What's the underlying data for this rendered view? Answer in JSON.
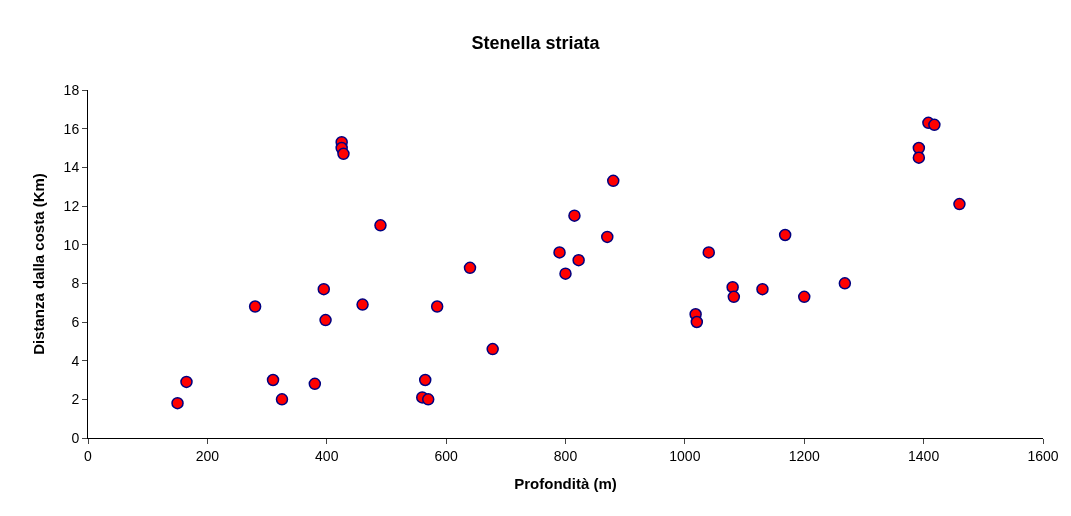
{
  "chart_data": {
    "type": "scatter",
    "title": "Stenella striata",
    "xlabel": "Profondità (m)",
    "ylabel": "Distanza dalla costa (Km)",
    "x": [
      150,
      165,
      280,
      310,
      325,
      380,
      395,
      398,
      425,
      425,
      428,
      460,
      490,
      560,
      565,
      570,
      585,
      640,
      678,
      790,
      800,
      815,
      822,
      870,
      880,
      1018,
      1020,
      1040,
      1080,
      1082,
      1130,
      1168,
      1200,
      1268,
      1392,
      1392,
      1408,
      1418,
      1460
    ],
    "series": [
      {
        "color": "#ff0000",
        "values": [
          1.8,
          2.9,
          6.8,
          3.0,
          2.0,
          2.8,
          7.7,
          6.1,
          15.3,
          15.0,
          14.7,
          6.9,
          11.0,
          2.1,
          3.0,
          2.0,
          6.8,
          8.8,
          4.6,
          9.6,
          8.5,
          11.5,
          9.2,
          10.4,
          13.3,
          6.4,
          6.0,
          9.6,
          7.8,
          7.3,
          7.7,
          10.5,
          7.3,
          8.0,
          15.0,
          14.5,
          16.3,
          16.2,
          12.1
        ]
      }
    ],
    "xlim": [
      0,
      1600
    ],
    "xticks": [
      0,
      200,
      400,
      600,
      800,
      1000,
      1200,
      1400,
      1600
    ],
    "ylim": [
      0,
      18
    ],
    "yticks": [
      0,
      2,
      4,
      6,
      8,
      10,
      12,
      14,
      16,
      18
    ],
    "grid": false,
    "marker": "circle"
  }
}
